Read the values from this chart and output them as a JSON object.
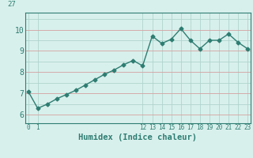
{
  "x": [
    0,
    1,
    2,
    3,
    4,
    5,
    6,
    7,
    8,
    9,
    10,
    11,
    12,
    13,
    14,
    15,
    16,
    17,
    18,
    19,
    20,
    21,
    22,
    23
  ],
  "y": [
    7.1,
    6.3,
    6.5,
    6.75,
    6.95,
    7.15,
    7.4,
    7.65,
    7.9,
    8.1,
    8.35,
    8.55,
    8.3,
    9.7,
    9.35,
    9.55,
    10.05,
    9.5,
    9.1,
    9.5,
    9.5,
    9.8,
    9.4,
    9.1
  ],
  "xlabel": "Humidex (Indice chaleur)",
  "line_color": "#2e7d72",
  "bg_color": "#d8f0ec",
  "grid_color": "#b0d4ce",
  "grid_color_red": "#d4a0a0",
  "yticks": [
    6,
    7,
    8,
    9,
    10
  ],
  "xlim": [
    -0.3,
    23.3
  ],
  "ylim": [
    5.6,
    10.8
  ],
  "top_label": "27",
  "marker_size": 2.5,
  "linewidth": 1.0,
  "xlabel_fontsize": 7.5,
  "tick_fontsize": 5.5,
  "ytick_fontsize": 7.0
}
